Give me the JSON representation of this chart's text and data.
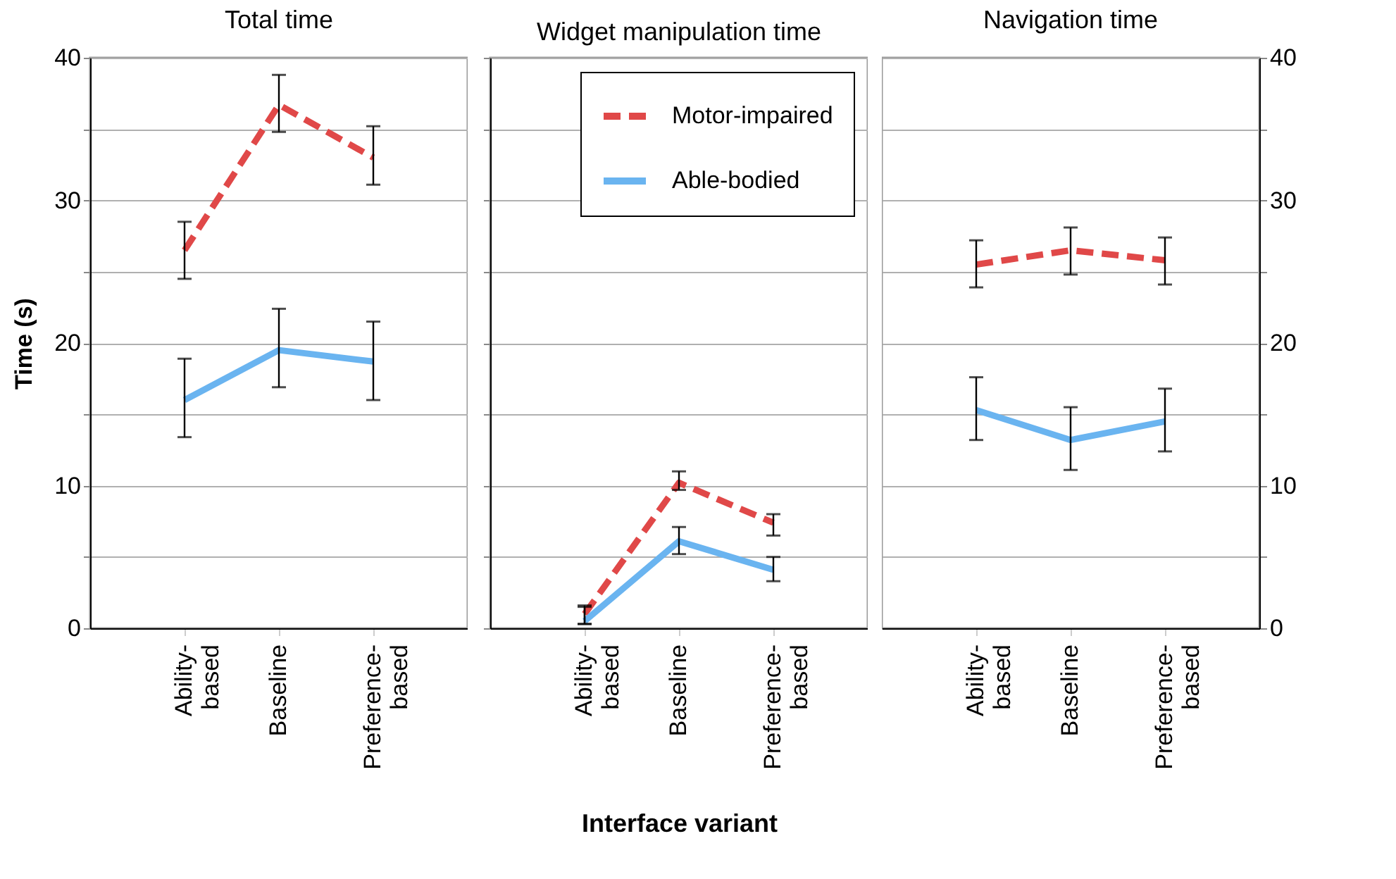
{
  "chart_data": [
    {
      "type": "line",
      "title": "Total time",
      "ylabel": "Time (s)",
      "categories": [
        "Ability-based",
        "Baseline",
        "Preference-based"
      ],
      "ylim": [
        0,
        40
      ],
      "yticks": [
        0,
        {
          "value": 5,
          "label": null
        },
        10,
        {
          "value": 15,
          "label": null
        },
        20,
        {
          "value": 25,
          "label": null
        },
        30,
        {
          "value": 35,
          "label": null
        },
        40
      ],
      "grid": "y",
      "series": [
        {
          "color": "#e04848",
          "line_style": "dashed",
          "values": [
            26.5,
            36.7,
            33.0
          ],
          "errors": [
            [
              24.5,
              28.5
            ],
            [
              34.8,
              38.8
            ],
            [
              31.1,
              35.2
            ]
          ]
        },
        {
          "color": "#6ab4f0",
          "line_style": "solid",
          "values": [
            16.0,
            19.5,
            18.7
          ],
          "errors": [
            [
              13.4,
              18.9
            ],
            [
              16.9,
              22.4
            ],
            [
              16.0,
              21.5
            ]
          ]
        }
      ]
    },
    {
      "type": "line",
      "title": "Widget manipulation time",
      "xlabel": "Interface variant",
      "categories": [
        "Ability-based",
        "Baseline",
        "Preference-based"
      ],
      "ylim": [
        0,
        40
      ],
      "yticks": [
        0,
        {
          "value": 5,
          "label": null
        },
        10,
        {
          "value": 15,
          "label": null
        },
        20,
        {
          "value": 25,
          "label": null
        },
        30,
        {
          "value": 35,
          "label": null
        },
        40
      ],
      "grid": "y",
      "legend": "top right",
      "tick_labels": "x",
      "series": [
        {
          "name": "Motor-impaired",
          "color": "#e04848",
          "line_style": "dashed",
          "values": [
            1.0,
            10.2,
            7.4
          ],
          "errors": [
            [
              0.3,
              1.6
            ],
            [
              9.7,
              11.0
            ],
            [
              6.5,
              8.0
            ]
          ]
        },
        {
          "name": "Able-bodied",
          "color": "#6ab4f0",
          "line_style": "solid",
          "values": [
            0.5,
            6.1,
            4.1
          ],
          "errors": [
            [
              0.3,
              1.5
            ],
            [
              5.2,
              7.1
            ],
            [
              3.3,
              5.0
            ]
          ]
        }
      ]
    },
    {
      "type": "line",
      "title": "Navigation time",
      "categories": [
        "Ability-based",
        "Baseline",
        "Preference-based"
      ],
      "ylim": [
        0,
        40
      ],
      "yticks": [
        0,
        {
          "value": 5,
          "label": null
        },
        10,
        {
          "value": 15,
          "label": null
        },
        20,
        {
          "value": 25,
          "label": null
        },
        30,
        {
          "value": 35,
          "label": null
        },
        40
      ],
      "grid": "y",
      "series": [
        {
          "color": "#e04848",
          "line_style": "dashed",
          "values": [
            25.5,
            26.5,
            25.8
          ],
          "errors": [
            [
              23.9,
              27.2
            ],
            [
              24.8,
              28.1
            ],
            [
              24.1,
              27.4
            ]
          ]
        },
        {
          "color": "#6ab4f0",
          "line_style": "solid",
          "values": [
            15.3,
            13.2,
            14.5
          ],
          "errors": [
            [
              13.2,
              17.6
            ],
            [
              11.1,
              15.5
            ],
            [
              12.4,
              16.8
            ]
          ]
        }
      ]
    }
  ]
}
